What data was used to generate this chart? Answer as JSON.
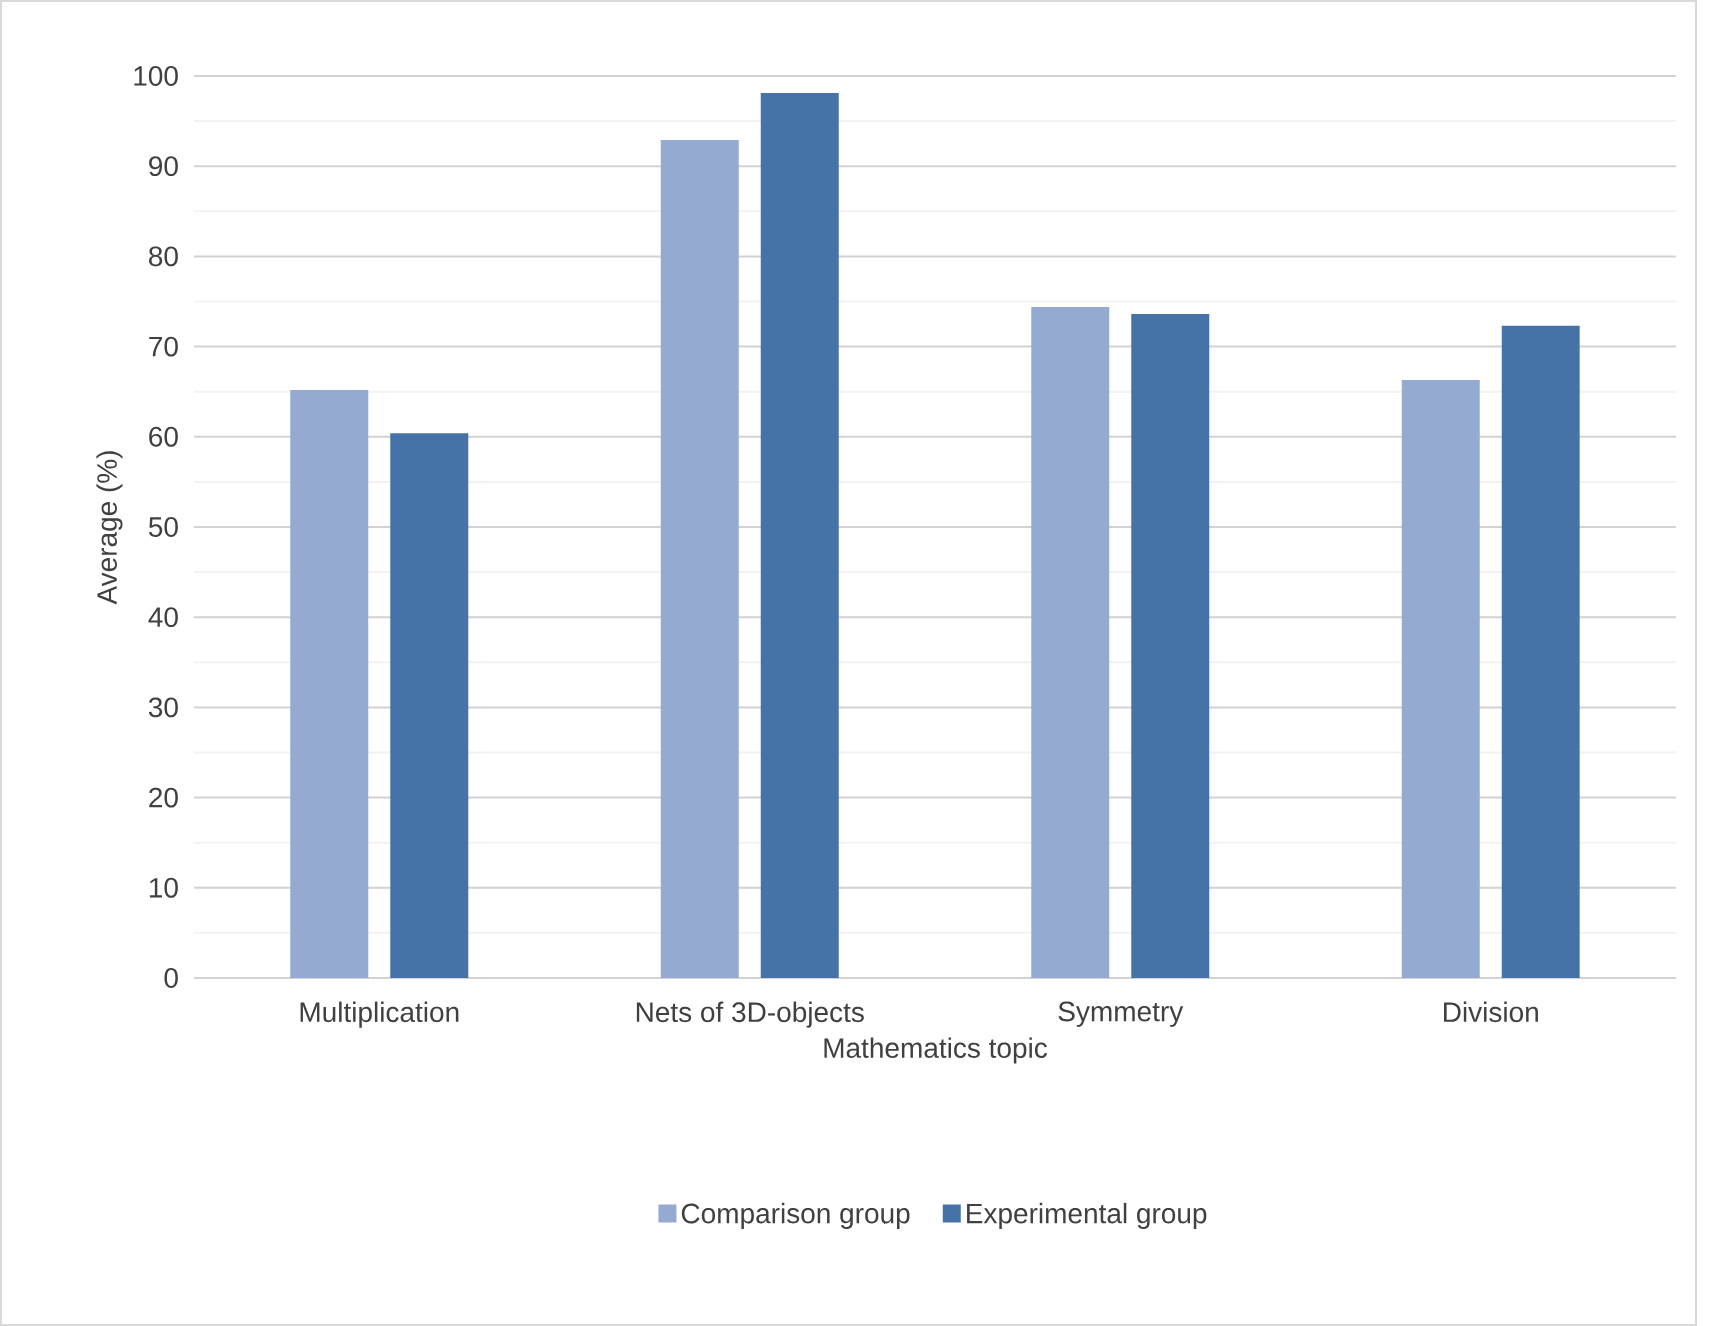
{
  "chart_data": {
    "type": "bar",
    "xlabel": "Mathematics topic",
    "ylabel": "Average (%)",
    "categories": [
      "Multiplication",
      "Nets of 3D-objects",
      "Symmetry",
      "Division"
    ],
    "series": [
      {
        "name": "Comparison group",
        "color": "#95aad0",
        "values": [
          65.2,
          92.9,
          74.4,
          66.3
        ]
      },
      {
        "name": "Experimental group",
        "color": "#4673a7",
        "values": [
          60.4,
          98.1,
          73.6,
          72.3
        ]
      }
    ],
    "ylim": [
      0,
      100
    ],
    "yticks": [
      0,
      10,
      20,
      30,
      40,
      50,
      60,
      70,
      80,
      90,
      100
    ],
    "grid": "y",
    "legend": "bottom"
  }
}
